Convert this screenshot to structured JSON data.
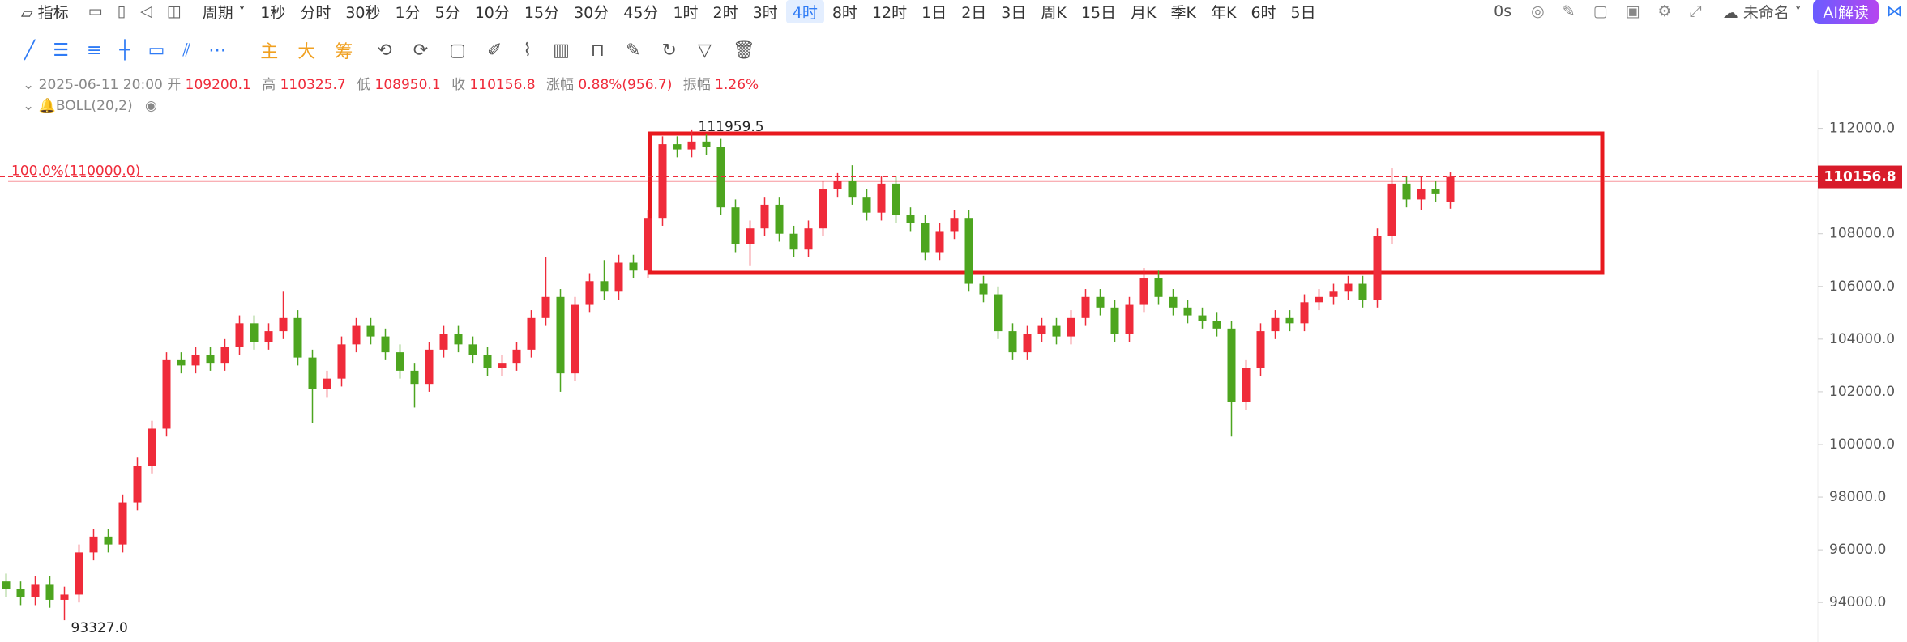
{
  "toolbar": {
    "indicator": "指标",
    "period": "周期",
    "intervals": [
      "1秒",
      "分时",
      "30秒",
      "1分",
      "5分",
      "10分",
      "15分",
      "30分",
      "45分",
      "1时",
      "2时",
      "3时",
      "4时",
      "8时",
      "12时",
      "1日",
      "2日",
      "3日",
      "周K",
      "15日",
      "月K",
      "季K",
      "年K",
      "6时",
      "5日"
    ],
    "selected_interval": 12,
    "timer": "0s",
    "layout_name": "未命名",
    "ai_button": "AI解读"
  },
  "drawing_toolbar": {
    "main": "主",
    "big": "大",
    "chips": "筹"
  },
  "info": {
    "datetime": "2025-06-11 20:00",
    "open_label": "开",
    "open": 109200.1,
    "high_label": "高",
    "high": 110325.7,
    "low_label": "低",
    "low": 108950.1,
    "close_label": "收",
    "close": 110156.8,
    "change_label": "涨幅",
    "change": "0.88%(956.7)",
    "amplitude_label": "振幅",
    "amplitude": "1.26%",
    "indicator": "BOLL(20,2)"
  },
  "chart_data": {
    "type": "candlestick",
    "open": [
      94800,
      94500,
      94200,
      94700,
      94100,
      94300,
      95900,
      96500,
      96200,
      97800,
      99200,
      100600,
      103200,
      103000,
      103400,
      103100,
      103700,
      104600,
      103900,
      104300,
      104800,
      103300,
      102100,
      102500,
      103800,
      104500,
      104100,
      103500,
      102800,
      102300,
      103600,
      104200,
      103800,
      103400,
      102900,
      103100,
      103600,
      104800,
      105600,
      102700,
      105300,
      106200,
      105800,
      106900,
      106600,
      108600,
      111400,
      111200,
      111500,
      111300,
      109000,
      107600,
      108200,
      109100,
      108000,
      107400,
      108200,
      109700,
      110000,
      109400,
      108800,
      109900,
      108700,
      108400,
      107300,
      108100,
      108600,
      106100,
      105700,
      104300,
      103500,
      104200,
      104500,
      104100,
      104800,
      105600,
      105200,
      104200,
      105300,
      106300,
      105600,
      105200,
      104900,
      104700,
      104400,
      101600,
      102900,
      104300,
      104800,
      104600,
      105400,
      105600,
      105800,
      106100,
      105500,
      107900,
      109900,
      109300,
      109700,
      109200.1
    ],
    "high": [
      95100,
      94800,
      95000,
      95000,
      94600,
      96200,
      96800,
      96800,
      98100,
      99500,
      100900,
      103500,
      103500,
      103700,
      103700,
      104000,
      104900,
      104900,
      104600,
      105800,
      105100,
      103600,
      102800,
      104100,
      104800,
      104800,
      104400,
      103800,
      103100,
      103900,
      104500,
      104500,
      104100,
      103700,
      103400,
      103900,
      105100,
      107100,
      105900,
      105600,
      106500,
      107000,
      107200,
      107200,
      108900,
      111700,
      111700,
      111959.5,
      111800,
      111600,
      109300,
      108500,
      109400,
      109400,
      108300,
      108500,
      110000,
      110300,
      110600,
      109700,
      110200,
      110200,
      109000,
      108700,
      108400,
      108900,
      108900,
      106400,
      106000,
      104600,
      104500,
      104800,
      104800,
      105100,
      105900,
      105900,
      105500,
      105600,
      106700,
      106600,
      105900,
      105500,
      105200,
      105000,
      104700,
      103200,
      104600,
      105100,
      105100,
      105700,
      105900,
      106100,
      106400,
      106400,
      108200,
      110500,
      110200,
      110200,
      110000,
      110325.7
    ],
    "low": [
      94200,
      93900,
      93900,
      93800,
      93327,
      94000,
      95600,
      95900,
      95900,
      97500,
      98900,
      100300,
      102700,
      102700,
      102800,
      102800,
      103400,
      103600,
      103600,
      104000,
      103000,
      100800,
      101800,
      102200,
      103500,
      103800,
      103200,
      102500,
      101400,
      102000,
      103300,
      103500,
      103100,
      102600,
      102600,
      102800,
      103300,
      104500,
      102000,
      102400,
      105000,
      105500,
      105500,
      106300,
      106300,
      108300,
      110900,
      110900,
      111000,
      108700,
      107300,
      106800,
      107900,
      107700,
      107100,
      107100,
      107900,
      109400,
      109100,
      108500,
      108500,
      108400,
      108100,
      107000,
      107000,
      107800,
      105800,
      105400,
      104000,
      103200,
      103200,
      103900,
      103800,
      103800,
      104500,
      104900,
      103900,
      103900,
      105000,
      105300,
      104900,
      104600,
      104400,
      104100,
      100300,
      101300,
      102600,
      104000,
      104300,
      104300,
      105100,
      105300,
      105500,
      105200,
      105200,
      107600,
      109000,
      108900,
      109200,
      108950.1
    ],
    "close": [
      94500,
      94200,
      94700,
      94100,
      94300,
      95900,
      96500,
      96200,
      97800,
      99200,
      100600,
      103200,
      103000,
      103400,
      103100,
      103700,
      104600,
      103900,
      104300,
      104800,
      103300,
      102100,
      102500,
      103800,
      104500,
      104100,
      103500,
      102800,
      102300,
      103600,
      104200,
      103800,
      103400,
      102900,
      103100,
      103600,
      104800,
      105600,
      102700,
      105300,
      106200,
      105800,
      106900,
      106600,
      108600,
      111400,
      111200,
      111500,
      111300,
      109000,
      107600,
      108200,
      109100,
      108000,
      107400,
      108200,
      109700,
      110000,
      109400,
      108800,
      109900,
      108700,
      108400,
      107300,
      108100,
      108600,
      106100,
      105700,
      104300,
      103500,
      104200,
      104500,
      104100,
      104800,
      105600,
      105200,
      104200,
      105300,
      106300,
      105600,
      105200,
      104900,
      104700,
      104400,
      101600,
      102900,
      104300,
      104800,
      104600,
      105400,
      105600,
      105800,
      106100,
      105500,
      107900,
      109900,
      109300,
      109700,
      109500,
      110156.8
    ],
    "up_color": "#ef2b3a",
    "down_color": "#4da51f",
    "ylim": [
      92500,
      114200
    ],
    "yticks": [
      {
        "value": 94000,
        "label": "94000.0"
      },
      {
        "value": 96000,
        "label": "96000.0"
      },
      {
        "value": 98000,
        "label": "98000.0"
      },
      {
        "value": 100000,
        "label": "100000.0"
      },
      {
        "value": 102000,
        "label": "102000.0"
      },
      {
        "value": 104000,
        "label": "104000.0"
      },
      {
        "value": 106000,
        "label": "106000.0"
      },
      {
        "value": 108000,
        "label": "108000.0"
      },
      {
        "value": 110000,
        "label": "110000.0"
      },
      {
        "value": 112000,
        "label": "112000.0"
      }
    ],
    "last_price": 110156.8,
    "level_line": {
      "value": 110000,
      "label": "100.0%(110000.0)"
    },
    "high_marker": 111959.5,
    "low_marker": {
      "value": 93327,
      "label": "93327.0"
    }
  }
}
